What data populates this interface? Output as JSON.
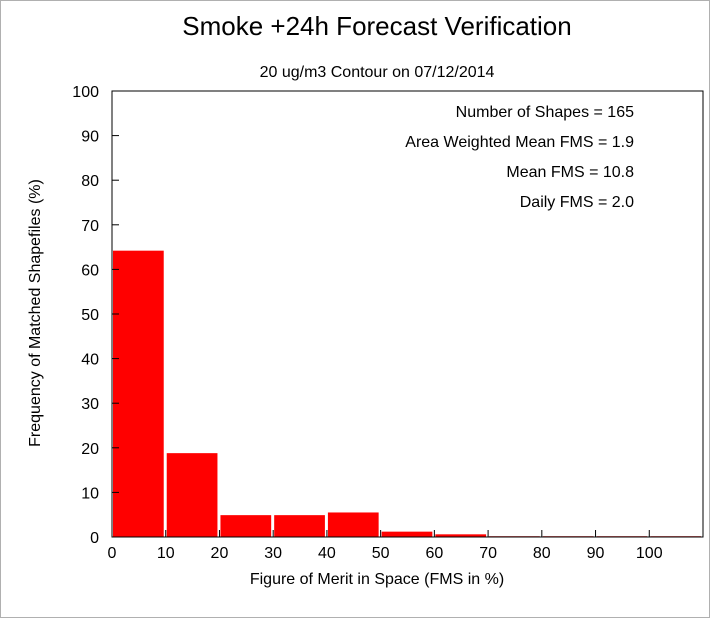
{
  "chart_data": {
    "type": "bar",
    "title": "Smoke +24h Forecast Verification",
    "subtitle": "20 ug/m3 Contour on 07/12/2014",
    "xlabel": "Figure of Merit in Space (FMS in %)",
    "ylabel": "Frequency of Matched Shapefiles (%)",
    "xlim": [
      0,
      110
    ],
    "ylim": [
      0,
      100
    ],
    "xticks": [
      0,
      10,
      20,
      30,
      40,
      50,
      60,
      70,
      80,
      90,
      100
    ],
    "yticks": [
      0,
      10,
      20,
      30,
      40,
      50,
      60,
      70,
      80,
      90,
      100
    ],
    "bins": [
      [
        0,
        10
      ],
      [
        10,
        20
      ],
      [
        20,
        30
      ],
      [
        30,
        40
      ],
      [
        40,
        50
      ],
      [
        50,
        60
      ],
      [
        60,
        70
      ],
      [
        70,
        80
      ],
      [
        80,
        90
      ],
      [
        90,
        100
      ],
      [
        100,
        110
      ]
    ],
    "values": [
      64.2,
      18.8,
      4.9,
      4.9,
      5.5,
      1.2,
      0.6,
      0,
      0,
      0,
      0
    ],
    "annotations": [
      "Number of Shapes = 165",
      "Area Weighted Mean FMS = 1.9",
      "Mean FMS = 10.8",
      "Daily FMS = 2.0"
    ],
    "grid": false,
    "bar_color": "#ff0000"
  }
}
